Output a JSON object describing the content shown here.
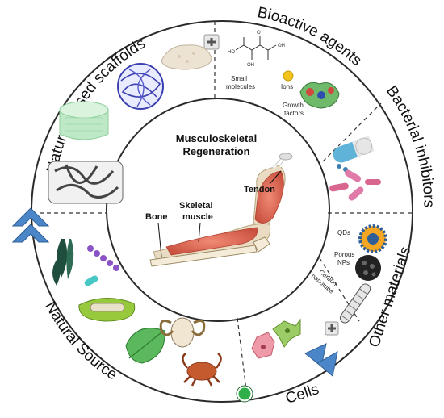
{
  "center": {
    "title_line1": "Musculoskeletal",
    "title_line2": "Regeneration",
    "labels": {
      "tendon": "Tendon",
      "skeletal_line1": "Skeletal",
      "skeletal_line2": "muscle",
      "bone": "Bone"
    }
  },
  "segments": {
    "natural_scaffolds": "Natural-based scaffolds",
    "bioactive_agents": "Bioactive agents",
    "bacterial_inhibitors": "Bacterial inhibitors",
    "other_materials": "Other materials",
    "cells": "Cells",
    "natural_source": "Natural Source"
  },
  "bioactive": {
    "small_molecules_line1": "Small",
    "small_molecules_line2": "molecules",
    "ions": "Ions",
    "growth_line1": "Growth",
    "growth_line2": "factors"
  },
  "other": {
    "qds": "QDs",
    "porous_line1": "Porous",
    "porous_line2": "NPs",
    "carbon_line1": "Carbon",
    "carbon_line2": "nanotube"
  },
  "colors": {
    "ring": "#2a2a2a",
    "arrow": "#4a86c8",
    "muscle": "#e06b5a",
    "bone": "#e9dcc2",
    "green_dot": "#2fae4a"
  }
}
